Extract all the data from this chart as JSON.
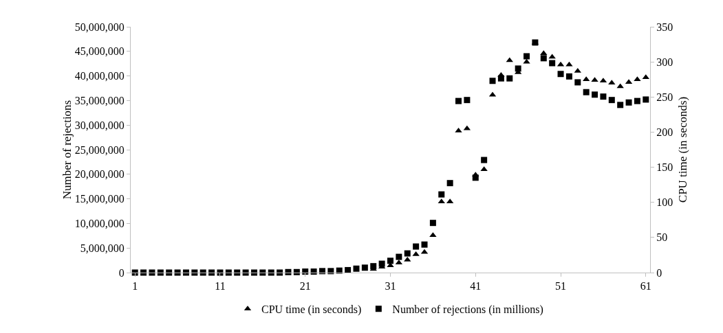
{
  "chart_data": {
    "type": "scatter",
    "ylabel": "Number of rejections",
    "y2label": "CPU time (in seconds)",
    "x": [
      1,
      2,
      3,
      4,
      5,
      6,
      7,
      8,
      9,
      10,
      11,
      12,
      13,
      14,
      15,
      16,
      17,
      18,
      19,
      20,
      21,
      22,
      23,
      24,
      25,
      26,
      27,
      28,
      29,
      30,
      31,
      32,
      33,
      34,
      35,
      36,
      37,
      38,
      39,
      40,
      41,
      42,
      43,
      44,
      45,
      46,
      47,
      48,
      49,
      50,
      51,
      52,
      53,
      54,
      55,
      56,
      57,
      58,
      59,
      60,
      61
    ],
    "series": [
      {
        "name": "CPU time (in seconds)",
        "color": "#000000",
        "marker": "triangle",
        "axis": "y2",
        "values": [
          null,
          null,
          null,
          null,
          null,
          null,
          null,
          null,
          null,
          null,
          null,
          null,
          null,
          null,
          null,
          null,
          null,
          null,
          null,
          null,
          null,
          null,
          null,
          null,
          null,
          null,
          null,
          null,
          5,
          8,
          10,
          14,
          18,
          26,
          29,
          53,
          101,
          101,
          202,
          205,
          139,
          147,
          253,
          281,
          302,
          285,
          300,
          327,
          312,
          307,
          296,
          296,
          287,
          275,
          274,
          273,
          270,
          265,
          271,
          275,
          278
        ]
      },
      {
        "name": "Number of rejections (in millions)",
        "color": "#000000",
        "marker": "square",
        "values": [
          0,
          0,
          0,
          0,
          0,
          0,
          0,
          0,
          0,
          0,
          0,
          0,
          0,
          0,
          0,
          0,
          0,
          0,
          100000,
          100000,
          200000,
          200000,
          300000,
          300000,
          400000,
          500000,
          800000,
          1000000,
          1300000,
          1800000,
          2400000,
          3200000,
          3900000,
          5300000,
          5700000,
          10100000,
          15900000,
          18200000,
          34900000,
          35100000,
          19300000,
          22900000,
          39000000,
          39500000,
          39500000,
          41500000,
          44000000,
          46800000,
          43600000,
          42600000,
          40400000,
          39900000,
          38700000,
          36700000,
          36200000,
          35800000,
          35100000,
          34100000,
          34600000,
          34900000,
          35200000
        ]
      }
    ],
    "xlim": [
      0.5,
      61.5
    ],
    "xticks": [
      1,
      11,
      21,
      31,
      41,
      51,
      61
    ],
    "ylim": [
      0,
      50000000
    ],
    "yticks": [
      {
        "value": 0,
        "label": "0"
      },
      {
        "value": 5000000,
        "label": "5,000,000"
      },
      {
        "value": 10000000,
        "label": "10,000,000"
      },
      {
        "value": 15000000,
        "label": "15,000,000"
      },
      {
        "value": 20000000,
        "label": "20,000,000"
      },
      {
        "value": 25000000,
        "label": "25,000,000"
      },
      {
        "value": 30000000,
        "label": "30,000,000"
      },
      {
        "value": 35000000,
        "label": "35,000,000"
      },
      {
        "value": 40000000,
        "label": "40,000,000"
      },
      {
        "value": 45000000,
        "label": "45,000,000"
      },
      {
        "value": 50000000,
        "label": "50,000,000"
      }
    ],
    "y2lim": [
      0,
      350
    ],
    "y2ticks": [
      0,
      50,
      100,
      150,
      200,
      250,
      300,
      350
    ],
    "grid": false,
    "legend": "bottom"
  }
}
